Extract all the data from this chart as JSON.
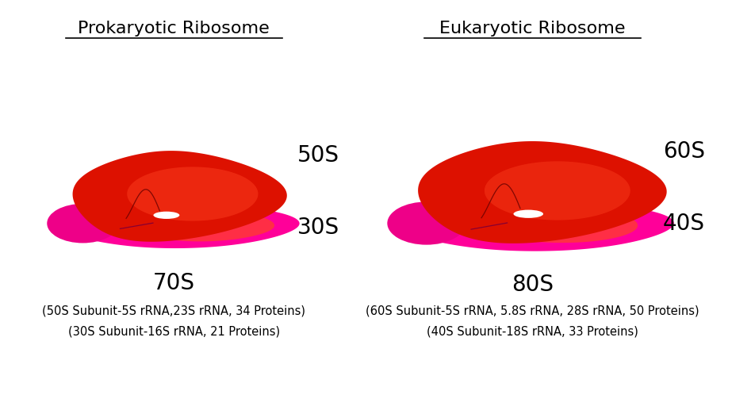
{
  "background_color": "#ffffff",
  "title_left": "Prokaryotic Ribosome",
  "title_right": "Eukaryotic Ribosome",
  "label_50S": "50S",
  "label_30S": "30S",
  "label_70S": "70S",
  "label_60S": "60S",
  "label_40S": "40S",
  "label_80S": "80S",
  "info_left_1": "(50S Subunit-5S rRNA,23S rRNA, 34 Proteins)",
  "info_left_2": "(30S Subunit-16S rRNA, 21 Proteins)",
  "info_right_1": "(60S Subunit-5S rRNA, 5.8S rRNA, 28S rRNA, 50 Proteins)",
  "info_right_2": "(40S Subunit-18S rRNA, 33 Proteins)",
  "color_large_main": "#dd1100",
  "color_large_highlight": "#ff4422",
  "color_small_main": "#ff0099",
  "color_small_highlight": "#ff5500",
  "color_small_left": "#ee0088",
  "color_line": "#660000",
  "title_fontsize": 16,
  "label_fontsize": 20,
  "info_fontsize": 10.5
}
